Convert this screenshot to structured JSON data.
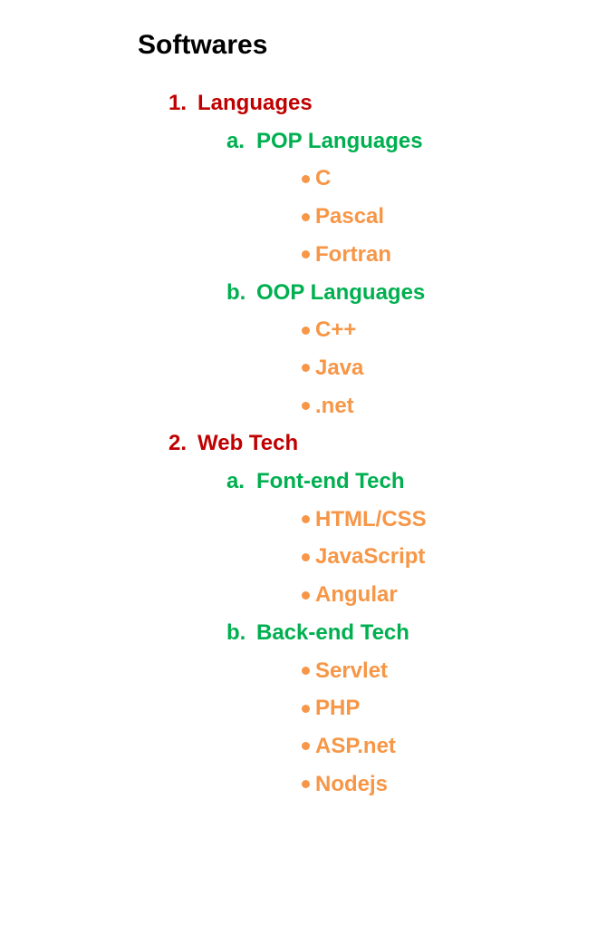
{
  "title": "Softwares",
  "colors": {
    "title": "#000000",
    "level1": "#c00000",
    "level2": "#00b050",
    "level3": "#f79646"
  },
  "sections": [
    {
      "marker": "1.",
      "label": "Languages",
      "groups": [
        {
          "marker": "a.",
          "label": "POP Languages",
          "items": [
            "C",
            "Pascal",
            "Fortran"
          ]
        },
        {
          "marker": "b.",
          "label": "OOP Languages",
          "items": [
            "C++",
            "Java",
            ".net"
          ]
        }
      ]
    },
    {
      "marker": "2.",
      "label": "Web Tech",
      "groups": [
        {
          "marker": "a.",
          "label": "Font-end Tech",
          "items": [
            "HTML/CSS",
            "JavaScript",
            "Angular"
          ]
        },
        {
          "marker": "b.",
          "label": "Back-end Tech",
          "items": [
            "Servlet",
            "PHP",
            "ASP.net",
            "Nodejs"
          ]
        }
      ]
    }
  ]
}
